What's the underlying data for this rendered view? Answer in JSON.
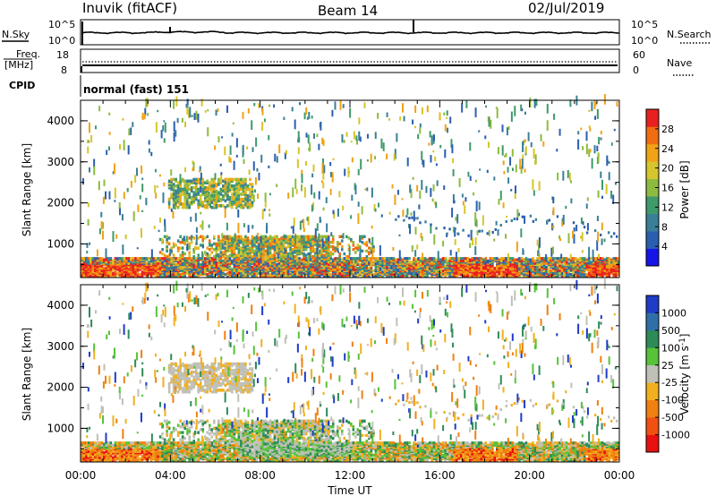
{
  "header": {
    "station": "Inuvik (fitACF)",
    "beam": "Beam 14",
    "date": "02/Jul/2019"
  },
  "panels": {
    "nsky_label": "N.Sky",
    "nsearch_label": "N.Search",
    "nsky_ticks": [
      "10^5",
      "10^0"
    ],
    "freq_label": "Freq.",
    "freq_unit": "[MHz]",
    "freq_ticks": [
      "18",
      "8"
    ],
    "nave_label": "Nave",
    "nave_ticks": [
      "60",
      "0"
    ],
    "cpid_label": "CPID",
    "cpid_value": "normal (fast) 151"
  },
  "chart_data": [
    {
      "type": "heatmap",
      "title": "",
      "xlabel": "",
      "ylabel": "Slant Range [km]",
      "xlim": [
        "00:00",
        "24:00"
      ],
      "ylim": [
        180,
        4500
      ],
      "y_ticks": [
        1000,
        2000,
        3000,
        4000
      ],
      "colorbar": {
        "label": "Power [dB]",
        "range": [
          0,
          32
        ],
        "ticks": [
          4,
          8,
          12,
          16,
          20,
          24,
          28
        ],
        "colors": [
          "#1515e8",
          "#2a5fb0",
          "#3a7f98",
          "#3f9a6a",
          "#8dbb3f",
          "#d6c52c",
          "#f0a316",
          "#f26c11",
          "#e82020"
        ]
      }
    },
    {
      "type": "heatmap",
      "title": "",
      "xlabel": "Time UT",
      "ylabel": "Slant Range [km]",
      "xlim": [
        "00:00",
        "24:00"
      ],
      "x_ticks": [
        "00:00",
        "04:00",
        "08:00",
        "12:00",
        "16:00",
        "20:00",
        "00:00"
      ],
      "ylim": [
        180,
        4500
      ],
      "y_ticks": [
        1000,
        2000,
        3000,
        4000
      ],
      "colorbar": {
        "label": "Velocity [m s^-1]",
        "ticks": [
          "1000",
          "500",
          "100",
          "25",
          "-25",
          "-100",
          "-500",
          "-1000"
        ],
        "colors": [
          "#1e3cc8",
          "#2f6fa8",
          "#2e8b57",
          "#57c23a",
          "#c0c0b8",
          "#f0b020",
          "#f08010",
          "#f05010",
          "#e81010"
        ]
      }
    }
  ]
}
